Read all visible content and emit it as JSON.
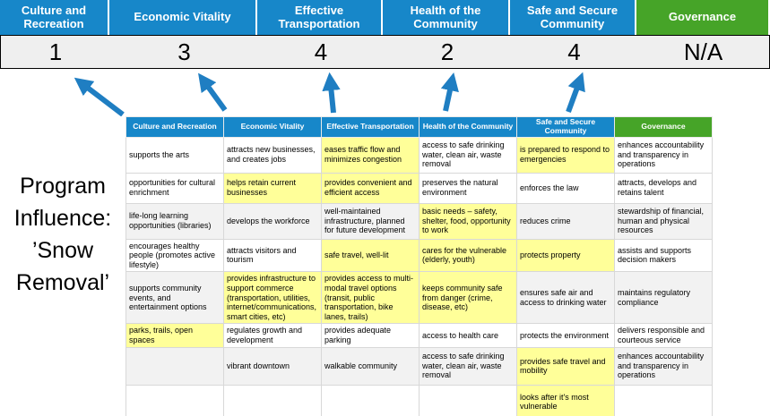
{
  "program_label": {
    "lines": [
      "Program",
      "Influence:",
      "’Snow",
      "Removal’"
    ]
  },
  "colors": {
    "blue": "#1787c9",
    "green": "#46a428",
    "highlight": "#ffff99",
    "arrow": "#1f7ec2",
    "score_strip": "#efefef"
  },
  "scoreboard": {
    "columns": [
      {
        "label": "Culture and Recreation",
        "score": "1",
        "theme": "blue"
      },
      {
        "label": "Economic Vitality",
        "score": "3",
        "theme": "blue"
      },
      {
        "label": "Effective Transportation",
        "score": "4",
        "theme": "blue"
      },
      {
        "label": "Health of the Community",
        "score": "2",
        "theme": "blue"
      },
      {
        "label": "Safe and Secure Community",
        "score": "4",
        "theme": "blue"
      },
      {
        "label": "Governance",
        "score": "N/A",
        "theme": "green"
      }
    ]
  },
  "matrix": {
    "headers": [
      {
        "label": "Culture and Recreation",
        "theme": "blue"
      },
      {
        "label": "Economic Vitality",
        "theme": "blue"
      },
      {
        "label": "Effective Transportation",
        "theme": "blue"
      },
      {
        "label": "Health of the Community",
        "theme": "blue"
      },
      {
        "label": "Safe and Secure Community",
        "theme": "blue"
      },
      {
        "label": "Governance",
        "theme": "green"
      }
    ],
    "rows": [
      [
        {
          "text": "supports the arts",
          "highlight": false
        },
        {
          "text": "attracts new businesses, and creates jobs",
          "highlight": false
        },
        {
          "text": "eases traffic flow and minimizes congestion",
          "highlight": true
        },
        {
          "text": "access to safe drinking water, clean air, waste removal",
          "highlight": false
        },
        {
          "text": "is prepared to respond to emergencies",
          "highlight": true
        },
        {
          "text": "enhances accountability and transparency in operations",
          "highlight": false
        }
      ],
      [
        {
          "text": "opportunities for cultural enrichment",
          "highlight": false
        },
        {
          "text": "helps retain current businesses",
          "highlight": true
        },
        {
          "text": "provides convenient and efficient access",
          "highlight": true
        },
        {
          "text": "preserves the natural environment",
          "highlight": false
        },
        {
          "text": "enforces the law",
          "highlight": false
        },
        {
          "text": "attracts, develops and retains talent",
          "highlight": false
        }
      ],
      [
        {
          "text": "life-long learning opportunities (libraries)",
          "highlight": false
        },
        {
          "text": "develops the workforce",
          "highlight": false
        },
        {
          "text": "well-maintained infrastructure, planned for future development",
          "highlight": false
        },
        {
          "text": "basic needs – safety, shelter, food, opportunity to work",
          "highlight": true
        },
        {
          "text": "reduces crime",
          "highlight": false
        },
        {
          "text": "stewardship of financial, human and physical resources",
          "highlight": false
        }
      ],
      [
        {
          "text": "encourages healthy people (promotes active lifestyle)",
          "highlight": false
        },
        {
          "text": "attracts visitors and tourism",
          "highlight": false
        },
        {
          "text": "safe travel, well-lit",
          "highlight": true
        },
        {
          "text": "cares for the vulnerable (elderly, youth)",
          "highlight": true
        },
        {
          "text": "protects property",
          "highlight": true
        },
        {
          "text": "assists and supports decision makers",
          "highlight": false
        }
      ],
      [
        {
          "text": "supports community events, and entertainment options",
          "highlight": false
        },
        {
          "text": "provides infrastructure to support commerce (transportation, utilities, internet/communications, smart cities, etc)",
          "highlight": true
        },
        {
          "text": "provides access to multi-modal travel options (transit, public transportation, bike lanes, trails)",
          "highlight": true
        },
        {
          "text": "keeps community safe from danger (crime, disease, etc)",
          "highlight": true
        },
        {
          "text": "ensures safe air and access to drinking water",
          "highlight": false
        },
        {
          "text": "maintains regulatory compliance",
          "highlight": false
        }
      ],
      [
        {
          "text": "parks, trails, open spaces",
          "highlight": true
        },
        {
          "text": "regulates growth and development",
          "highlight": false
        },
        {
          "text": "provides adequate parking",
          "highlight": false
        },
        {
          "text": "access to health care",
          "highlight": false
        },
        {
          "text": "protects the environment",
          "highlight": false
        },
        {
          "text": "delivers responsible and courteous service",
          "highlight": false
        }
      ],
      [
        {
          "text": "",
          "highlight": false
        },
        {
          "text": "vibrant downtown",
          "highlight": false
        },
        {
          "text": "walkable community",
          "highlight": false
        },
        {
          "text": "access to safe drinking water, clean air, waste removal",
          "highlight": false
        },
        {
          "text": "provides safe travel and mobility",
          "highlight": true
        },
        {
          "text": "enhances accountability and transparency in operations",
          "highlight": false
        }
      ],
      [
        {
          "text": "",
          "highlight": false
        },
        {
          "text": "",
          "highlight": false
        },
        {
          "text": "",
          "highlight": false
        },
        {
          "text": "",
          "highlight": false
        },
        {
          "text": "looks after it's most vulnerable",
          "highlight": true
        },
        {
          "text": "",
          "highlight": false
        }
      ]
    ]
  }
}
